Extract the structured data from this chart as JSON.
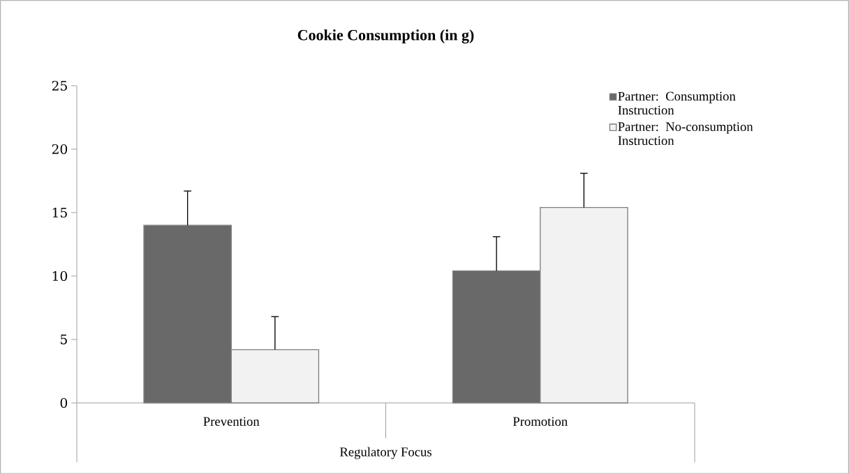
{
  "chart_data": {
    "type": "bar",
    "title": "**Cookie Consumption (in g)**",
    "xlabel": "Regulatory Focus",
    "categories": [
      "Prevention",
      "Promotion"
    ],
    "series": [
      {
        "name": "Partner: Consumption Instruction",
        "color": "#696969",
        "values": [
          14.0,
          10.4
        ],
        "errors": [
          [
            14.0,
            16.7
          ],
          [
            10.4,
            13.1
          ]
        ]
      },
      {
        "name": "Partner: No-consumption Instruction",
        "color": "#f2f2f2",
        "values": [
          4.2,
          15.4
        ],
        "errors": [
          [
            4.2,
            6.8
          ],
          [
            15.4,
            18.1
          ]
        ]
      }
    ],
    "ylim": [
      0,
      25
    ],
    "yticks": [
      0,
      5,
      10,
      15,
      20,
      25
    ],
    "grid": false,
    "legend": "top right"
  }
}
